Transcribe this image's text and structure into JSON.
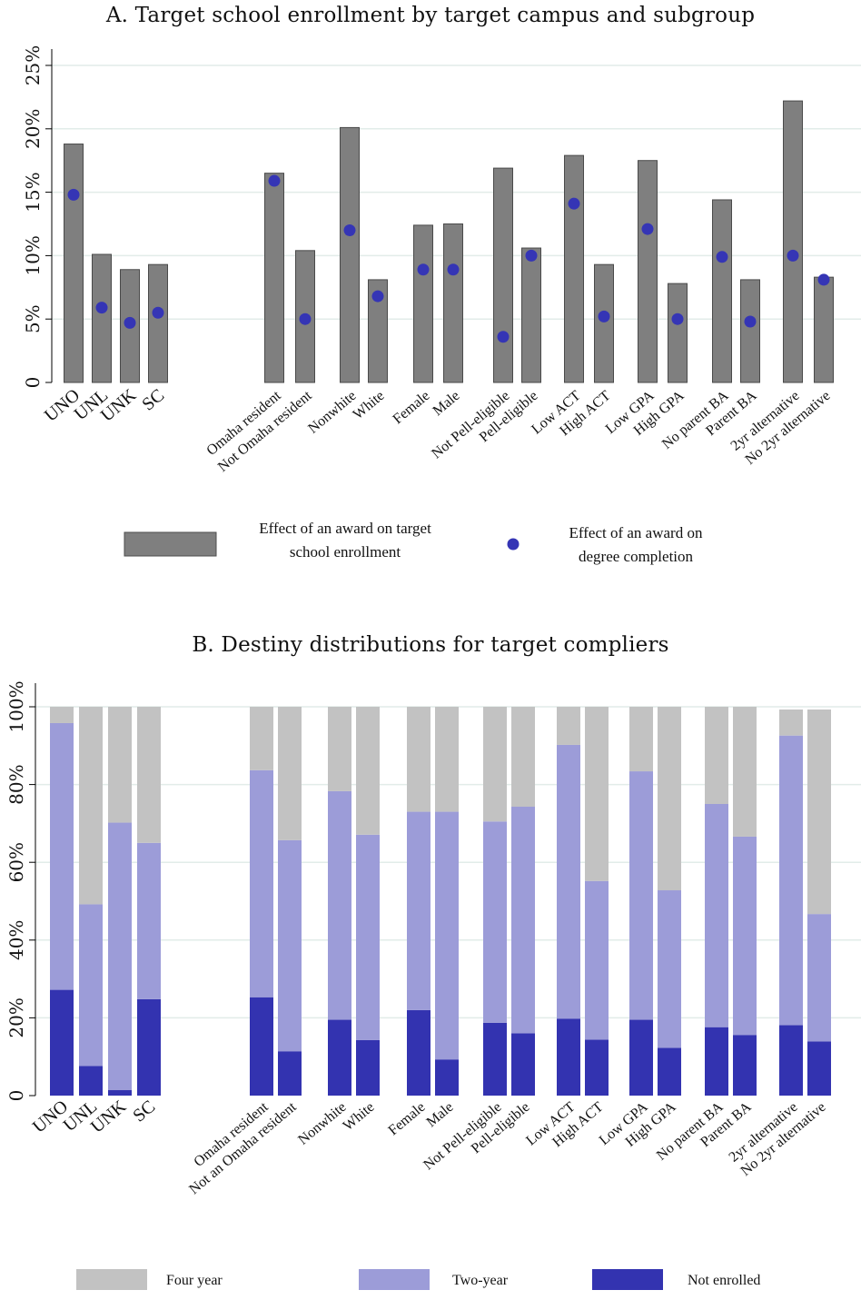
{
  "panel_a": {
    "title": "A. Target school enrollment by target campus and subgroup",
    "legend": {
      "bar_line1": "Effect of an award on target",
      "bar_line2": "school enrollment",
      "dot_line1": "Effect of an award on",
      "dot_line2": "degree completion"
    }
  },
  "panel_b": {
    "title": "B. Destiny distributions for target compliers",
    "legend": {
      "four_year": "Four year",
      "two_year": "Two-year",
      "not_enrolled": "Not enrolled"
    }
  },
  "colors": {
    "bar_gray": "#7f7f7f",
    "dot_blue": "#3535b5",
    "four_year": "#c2c2c2",
    "two_year": "#9c9cd8",
    "not_enrolled": "#3333b0",
    "grid": "#e2ece9"
  },
  "chart_data": [
    {
      "type": "bar",
      "title": "A. Target school enrollment by target campus and subgroup",
      "ylim": [
        0,
        25
      ],
      "yticks": [
        "0",
        "5%",
        "10%",
        "15%",
        "20%",
        "25%"
      ],
      "grid": true,
      "legend_position": "bottom",
      "categories": [
        "UNO",
        "UNL",
        "UNK",
        "SC",
        "Omaha resident",
        "Not Omaha resident",
        "Nonwhite",
        "White",
        "Female",
        "Male",
        "Not Pell-eligible",
        "Pell-eligible",
        "Low ACT",
        "High ACT",
        "Low GPA",
        "High GPA",
        "No parent BA",
        "Parent BA",
        "2yr alternative",
        "No 2yr alternative"
      ],
      "series": [
        {
          "name": "Effect of an award on target school enrollment",
          "values": [
            18.8,
            10.1,
            8.9,
            9.3,
            16.5,
            10.4,
            20.1,
            8.1,
            12.4,
            12.5,
            16.9,
            10.6,
            17.9,
            9.3,
            17.5,
            7.8,
            14.4,
            8.1,
            22.2,
            8.3
          ]
        },
        {
          "name": "Effect of an award on degree completion",
          "values": [
            14.8,
            5.9,
            4.7,
            5.5,
            15.9,
            5.0,
            12.0,
            6.8,
            8.9,
            8.9,
            3.6,
            10.0,
            14.1,
            5.2,
            12.1,
            5.0,
            9.9,
            4.8,
            10.0,
            8.1
          ]
        }
      ]
    },
    {
      "type": "bar",
      "stacked": true,
      "title": "B. Destiny distributions for target compliers",
      "ylim": [
        0,
        100
      ],
      "yticks": [
        "0",
        "20%",
        "40%",
        "60%",
        "80%",
        "100%"
      ],
      "grid": true,
      "legend_position": "bottom",
      "categories": [
        "UNO",
        "UNL",
        "UNK",
        "SC",
        "Omaha resident",
        "Not an Omaha resident",
        "Nonwhite",
        "White",
        "Female",
        "Male",
        "Not Pell-eligible",
        "Pell-eligible",
        "Low ACT",
        "High ACT",
        "Low GPA",
        "High GPA",
        "No parent BA",
        "Parent BA",
        "2yr alternative",
        "No 2yr alternative"
      ],
      "series": [
        {
          "name": "Not enrolled",
          "values": [
            27.2,
            7.6,
            1.4,
            24.8,
            25.3,
            11.4,
            19.5,
            14.3,
            22.0,
            9.3,
            18.7,
            16.0,
            19.8,
            14.4,
            19.5,
            12.3,
            17.6,
            15.6,
            18.1,
            13.9
          ]
        },
        {
          "name": "Two-year",
          "values": [
            68.6,
            41.6,
            68.8,
            40.2,
            58.4,
            54.3,
            58.8,
            52.8,
            51.0,
            63.7,
            51.8,
            58.3,
            70.4,
            40.8,
            63.9,
            40.5,
            57.4,
            51.0,
            74.5,
            32.8
          ]
        },
        {
          "name": "Four year",
          "values": [
            4.2,
            50.8,
            29.8,
            35.0,
            16.3,
            34.3,
            21.7,
            32.9,
            27.0,
            27.0,
            29.5,
            25.7,
            9.8,
            44.8,
            16.6,
            47.2,
            25.0,
            33.4,
            6.7,
            52.6
          ]
        }
      ]
    }
  ]
}
